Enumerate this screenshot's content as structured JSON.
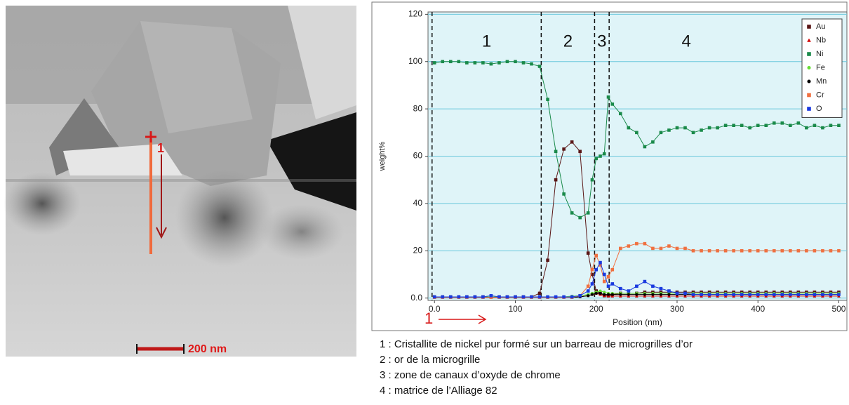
{
  "image": {
    "point_label": "1",
    "scale_bar": "200 nm"
  },
  "chart_data": {
    "type": "line",
    "x_label": "Position (nm)",
    "y_label": "weight%",
    "xlim": [
      -8,
      510
    ],
    "ylim": [
      -1,
      121
    ],
    "xticks": [
      {
        "value": 0,
        "label": "0.0"
      },
      100,
      200,
      300,
      400,
      500
    ],
    "yticks": [
      {
        "value": 0,
        "label": "0.0"
      },
      20,
      40,
      60,
      80,
      100,
      120
    ],
    "grid": true,
    "legend": "upper right",
    "zones": [
      {
        "label": "1",
        "start": -3
      },
      {
        "label": "2",
        "start": 132
      },
      {
        "label": "3",
        "start": 198
      },
      {
        "label": "4",
        "start": 216
      }
    ],
    "start_label": "1",
    "x": [
      0,
      10,
      20,
      30,
      40,
      50,
      60,
      70,
      80,
      90,
      100,
      110,
      120,
      130,
      140,
      150,
      160,
      170,
      180,
      190,
      195,
      200,
      205,
      210,
      215,
      220,
      230,
      240,
      250,
      260,
      270,
      280,
      290,
      300,
      310,
      320,
      330,
      340,
      350,
      360,
      370,
      380,
      390,
      400,
      410,
      420,
      430,
      440,
      450,
      460,
      470,
      480,
      490,
      500
    ],
    "series": [
      {
        "name": "Au",
        "color": "#5a1616",
        "marker": "square",
        "values": [
          0.5,
          0.5,
          0.5,
          0.5,
          0.5,
          0.5,
          0.5,
          0.5,
          0.5,
          0.5,
          0.5,
          0.5,
          0.5,
          2,
          16,
          50,
          63,
          66,
          62,
          19,
          10,
          3,
          2,
          1,
          1,
          1.5,
          2,
          2,
          2,
          2.5,
          2.5,
          2.5,
          2.5,
          2.5,
          2.5,
          2.5,
          2.5,
          2.5,
          2.5,
          2.5,
          2.5,
          2.5,
          2.5,
          2.5,
          2.5,
          2.5,
          2.5,
          2.5,
          2.5,
          2.5,
          2.5,
          2.5,
          2.5,
          2.5
        ]
      },
      {
        "name": "Nb",
        "color": "#d00000",
        "marker": "triangle",
        "values": [
          0.3,
          0.3,
          0.3,
          0.3,
          0.3,
          0.3,
          0.3,
          0.3,
          0.3,
          0.3,
          0.3,
          0.3,
          0.3,
          0.3,
          0.3,
          0.3,
          0.3,
          0.3,
          0.5,
          1,
          1.5,
          2,
          1.5,
          1,
          0.8,
          0.8,
          0.8,
          0.8,
          0.8,
          0.8,
          0.8,
          0.8,
          0.8,
          0.8,
          0.8,
          0.8,
          0.8,
          0.8,
          0.8,
          0.8,
          0.8,
          0.8,
          0.8,
          0.8,
          0.8,
          0.8,
          0.8,
          0.8,
          0.8,
          0.8,
          0.8,
          0.8,
          0.8,
          0.8
        ]
      },
      {
        "name": "Ni",
        "color": "#1a8a4a",
        "marker": "square",
        "values": [
          99.5,
          100,
          100,
          100,
          99.5,
          99.5,
          99.5,
          99,
          99.5,
          100,
          100,
          99.5,
          99,
          98,
          84,
          62,
          44,
          36,
          34,
          36,
          50,
          59,
          60,
          61,
          85,
          82,
          78,
          72,
          70,
          64,
          66,
          70,
          71,
          72,
          72,
          70,
          71,
          72,
          72,
          73,
          73,
          73,
          72,
          73,
          73,
          74,
          74,
          73,
          74,
          72,
          73,
          72,
          73,
          73
        ]
      },
      {
        "name": "Fe",
        "color": "#66dd33",
        "marker": "circle",
        "values": [
          0.5,
          0.5,
          0.5,
          0.5,
          0.5,
          0.5,
          0.5,
          0.5,
          0.5,
          0.5,
          0.5,
          0.5,
          0.5,
          0.5,
          0.5,
          0.5,
          0.5,
          0.8,
          1,
          1.5,
          2,
          2.5,
          3,
          2.5,
          2,
          2,
          2,
          2,
          2,
          2,
          2,
          2,
          2,
          2,
          2,
          2,
          2,
          2,
          2,
          2,
          2,
          2,
          2,
          2,
          2,
          2,
          2,
          2,
          2,
          2,
          2,
          2,
          2,
          2
        ]
      },
      {
        "name": "Mn",
        "color": "#000000",
        "marker": "circle",
        "values": [
          0.3,
          0.3,
          0.3,
          0.3,
          0.3,
          0.3,
          0.3,
          0.3,
          0.3,
          0.3,
          0.3,
          0.3,
          0.3,
          0.3,
          0.3,
          0.3,
          0.3,
          0.3,
          0.5,
          1,
          1.5,
          2,
          2,
          1.5,
          1.5,
          1.5,
          1.5,
          1.5,
          1.5,
          1.5,
          1.5,
          1.5,
          1.5,
          1.5,
          1.5,
          1.5,
          1.5,
          1.5,
          1.5,
          1.5,
          1.5,
          1.5,
          1.5,
          1.5,
          1.5,
          1.5,
          1.5,
          1.5,
          1.5,
          1.5,
          1.5,
          1.5,
          1.5,
          1.5
        ]
      },
      {
        "name": "Cr",
        "color": "#f07040",
        "marker": "square",
        "values": [
          0.3,
          0.3,
          0.3,
          0.3,
          0.3,
          0.3,
          0.3,
          0.3,
          0.3,
          0.3,
          0.3,
          0.3,
          0.3,
          0.3,
          0.3,
          0.3,
          0.3,
          0.3,
          1,
          5,
          12,
          18,
          14,
          7,
          9,
          12,
          21,
          22,
          23,
          23,
          21,
          21,
          22,
          21,
          21,
          20,
          20,
          20,
          20,
          20,
          20,
          20,
          20,
          20,
          20,
          20,
          20,
          20,
          20,
          20,
          20,
          20,
          20,
          20
        ]
      },
      {
        "name": "O",
        "color": "#1a3adf",
        "marker": "square",
        "values": [
          0.5,
          0.5,
          0.5,
          0.5,
          0.5,
          0.5,
          0.5,
          1,
          0.5,
          0.5,
          0.5,
          0.5,
          0.5,
          0.5,
          0.5,
          0.5,
          0.5,
          0.5,
          1,
          3,
          6,
          12,
          15,
          10,
          5,
          6,
          4,
          3,
          5,
          7,
          5,
          4,
          3,
          2,
          2,
          1.5,
          1.5,
          1.5,
          1.5,
          1.5,
          1.5,
          1.5,
          1.5,
          1.5,
          1.5,
          1.5,
          1.5,
          1.5,
          1.5,
          1.5,
          1.5,
          1.5,
          1.5,
          1.5
        ]
      }
    ]
  },
  "captions": [
    "1 : Cristallite de nickel pur formé sur un barreau de microgrilles d’or",
    "2 : or de la microgrille",
    "3 : zone de canaux d’oxyde de chrome",
    "4 : matrice de l’Alliage  82"
  ]
}
